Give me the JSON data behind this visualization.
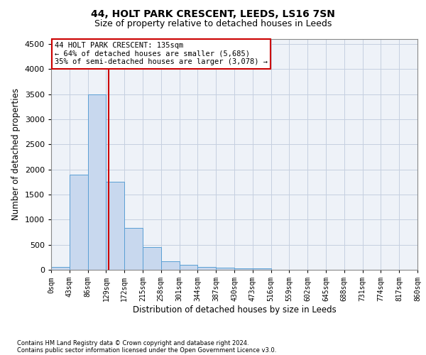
{
  "title_line1": "44, HOLT PARK CRESCENT, LEEDS, LS16 7SN",
  "title_line2": "Size of property relative to detached houses in Leeds",
  "xlabel": "Distribution of detached houses by size in Leeds",
  "ylabel": "Number of detached properties",
  "bar_edges": [
    0,
    43,
    86,
    129,
    172,
    215,
    258,
    301,
    344,
    387,
    430,
    473,
    516,
    559,
    602,
    645,
    688,
    731,
    774,
    817,
    860
  ],
  "bar_heights": [
    50,
    1900,
    3500,
    1750,
    840,
    450,
    175,
    100,
    60,
    40,
    30,
    30,
    0,
    0,
    0,
    0,
    0,
    0,
    0,
    0
  ],
  "bar_color": "#c8d8ee",
  "bar_edge_color": "#5a9fd4",
  "vline_x": 135,
  "vline_color": "#cc0000",
  "ylim": [
    0,
    4600
  ],
  "yticks": [
    0,
    500,
    1000,
    1500,
    2000,
    2500,
    3000,
    3500,
    4000,
    4500
  ],
  "annotation_text": "44 HOLT PARK CRESCENT: 135sqm\n← 64% of detached houses are smaller (5,685)\n35% of semi-detached houses are larger (3,078) →",
  "annotation_box_color": "#cc0000",
  "footer_line1": "Contains HM Land Registry data © Crown copyright and database right 2024.",
  "footer_line2": "Contains public sector information licensed under the Open Government Licence v3.0.",
  "background_color": "#eef2f8",
  "grid_color": "#c5cfe0",
  "tick_label_fontsize": 7,
  "axis_label_fontsize": 8.5,
  "title_fontsize1": 10,
  "title_fontsize2": 9,
  "footer_fontsize": 6
}
